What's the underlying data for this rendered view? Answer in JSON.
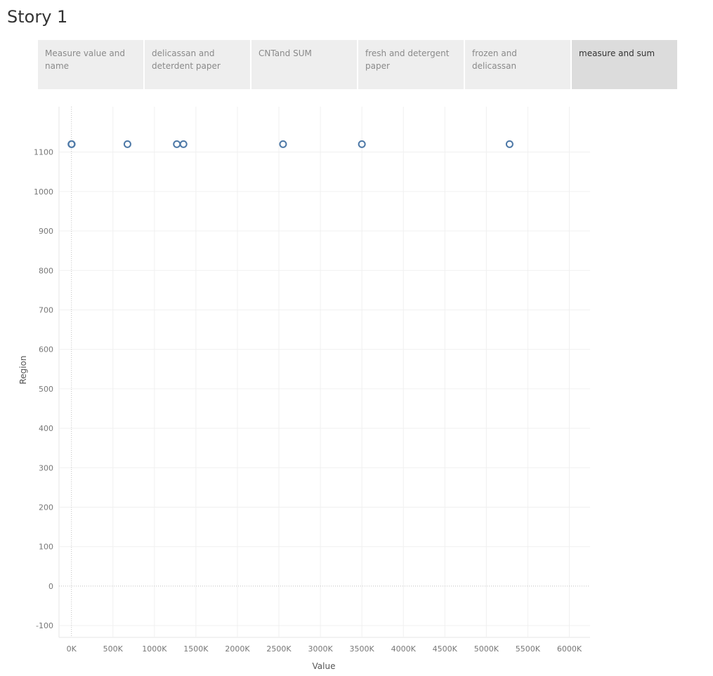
{
  "story": {
    "title": "Story 1"
  },
  "tabs": [
    {
      "label": "Measure value and name",
      "active": false
    },
    {
      "label": "delicassan and deterdent paper",
      "active": false
    },
    {
      "label": "CNTand SUM",
      "active": false
    },
    {
      "label": "fresh and detergent paper",
      "active": false
    },
    {
      "label": "frozen and delicassan",
      "active": false
    },
    {
      "label": "measure and sum",
      "active": true
    }
  ],
  "chart_data": {
    "type": "scatter",
    "xlabel": "Value",
    "ylabel": "Region",
    "xlim": [
      -150000,
      6250000
    ],
    "ylim": [
      -130,
      1215
    ],
    "xticks": [
      0,
      500000,
      1000000,
      1500000,
      2000000,
      2500000,
      3000000,
      3500000,
      4000000,
      4500000,
      5000000,
      5500000,
      6000000
    ],
    "xtick_labels": [
      "0K",
      "500K",
      "1000K",
      "1500K",
      "2000K",
      "2500K",
      "3000K",
      "3500K",
      "4000K",
      "4500K",
      "5000K",
      "5500K",
      "6000K"
    ],
    "yticks": [
      -100,
      0,
      100,
      200,
      300,
      400,
      500,
      600,
      700,
      800,
      900,
      1000,
      1100
    ],
    "ytick_labels": [
      "-100",
      "0",
      "100",
      "200",
      "300",
      "400",
      "500",
      "600",
      "700",
      "800",
      "900",
      "1000",
      "1100"
    ],
    "grid": true,
    "marker": "hollow-circle",
    "color": "#4e79a7",
    "points": [
      {
        "x": 0,
        "y": 1120
      },
      {
        "x": 3000,
        "y": 1120
      },
      {
        "x": 675000,
        "y": 1120
      },
      {
        "x": 1270000,
        "y": 1120
      },
      {
        "x": 1350000,
        "y": 1120
      },
      {
        "x": 2550000,
        "y": 1120
      },
      {
        "x": 3500000,
        "y": 1120
      },
      {
        "x": 5280000,
        "y": 1120
      }
    ]
  }
}
